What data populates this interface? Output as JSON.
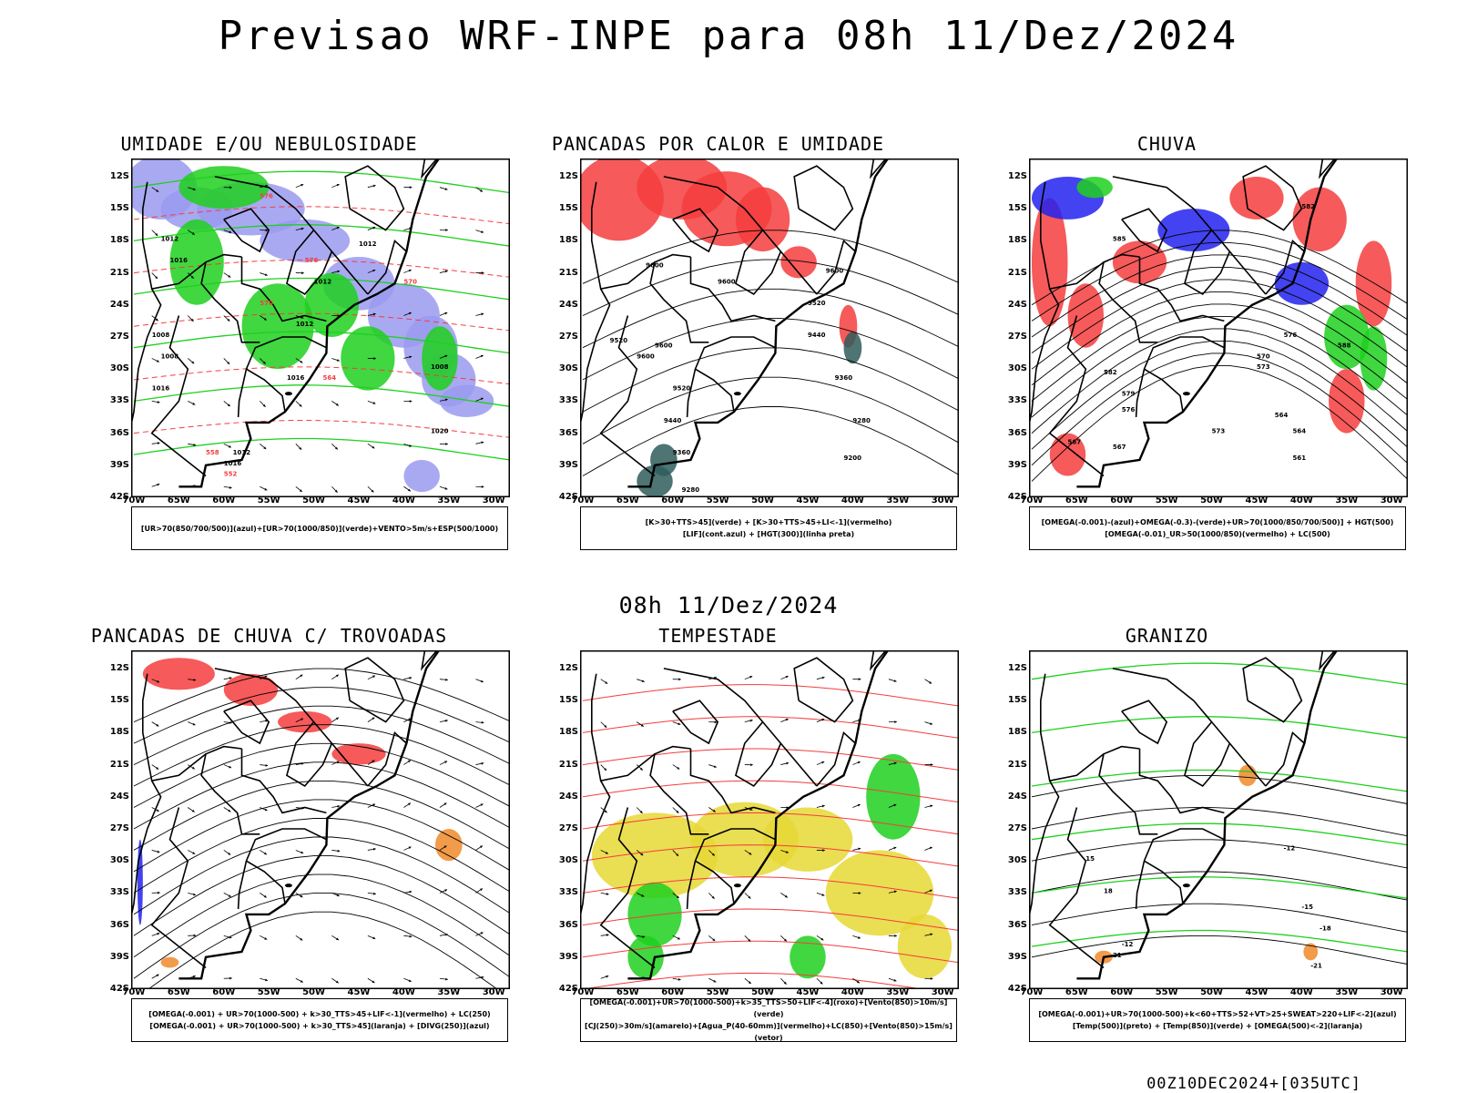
{
  "title": "Previsao WRF-INPE  para 08h 11/Dez/2024",
  "mid_time": "08h 11/Dez/2024",
  "footer": "00Z10DEC2024+[035UTC]",
  "axes": {
    "lat_labels": [
      "12S",
      "15S",
      "18S",
      "21S",
      "24S",
      "27S",
      "30S",
      "33S",
      "36S",
      "39S",
      "42S"
    ],
    "lon_labels": [
      "70W",
      "65W",
      "60W",
      "55W",
      "50W",
      "45W",
      "40W",
      "35W",
      "30W"
    ]
  },
  "colors": {
    "ur_850_700_500": "#9a9af0",
    "green": "#1ed01e",
    "red": "#f53d3d",
    "dark_teal": "#2f5c5c",
    "blue": "#2222ee",
    "yellow": "#e6d835",
    "orange": "#f08a2a",
    "contour": "#000000"
  },
  "panels": [
    {
      "title": "UMIDADE E/OU NEBULOSIDADE",
      "legend": [
        "[UR>70(850/700/500)](azul)+[UR>70(1000/850)](verde)+VENTO>5m/s+ESP(500/1000)"
      ],
      "contour_labels": [
        "1012",
        "1012",
        "1012",
        "1016",
        "1008",
        "1008",
        "1016",
        "1012",
        "1020",
        "1016",
        "1012",
        "1008",
        "1016",
        "576",
        "576",
        "570",
        "564",
        "558",
        "552",
        "570"
      ]
    },
    {
      "title": "PANCADAS POR CALOR E UMIDADE",
      "legend": [
        "[K>30+TTS>45](verde) + [K>30+TTS>45+LI<-1](vermelho)",
        "[LIF](cont.azul) + [HGT(300)](linha preta)"
      ],
      "contour_labels": [
        "9600",
        "9600",
        "9600",
        "9600",
        "9520",
        "9440",
        "9360",
        "9280",
        "9200",
        "9280",
        "9360",
        "9440",
        "9520",
        "9600",
        "9520"
      ]
    },
    {
      "title": "CHUVA",
      "legend": [
        "[OMEGA(-0.001)-(azul)+OMEGA(-0.3)-(verde)+UR>70(1000/850/700/500)] + HGT(500)",
        "[OMEGA(-0.01)_UR>50(1000/850)(vermelho) + LC(500)"
      ],
      "contour_labels": [
        "582",
        "585",
        "582",
        "579",
        "576",
        "573",
        "570",
        "567",
        "564",
        "561",
        "588",
        "576",
        "573",
        "567",
        "564"
      ]
    },
    {
      "title": "PANCADAS DE CHUVA C/ TROVOADAS",
      "legend": [
        "[OMEGA(-0.001) + UR>70(1000-500) + k>30_TTS>45+LIF<-1](vermelho) + LC(250)",
        "[OMEGA(-0.001) + UR>70(1000-500) + k>30_TTS>45](laranja) + [DIVG(250)](azul)"
      ],
      "contour_labels": []
    },
    {
      "title": "TEMPESTADE",
      "legend": [
        "[OMEGA(-0.001)+UR>70(1000-500)+k>35_TTS>50+LIF<-4](roxo)+[Vento(850)>10m/s](verde)",
        "[CJ(250)>30m/s](amarelo)+[Agua_P(40-60mm)](vermelho)+LC(850)+[Vento(850)>15m/s](vetor)"
      ],
      "contour_labels": []
    },
    {
      "title": "GRANIZO",
      "legend": [
        "[OMEGA(-0.001)+UR>70(1000-500)+k<60+TTS>52+VT>25+SWEAT>220+LIF<-2](azul)",
        "[Temp(500)](preto) + [Temp(850)](verde) + [OMEGA(500)<-2](laranja)"
      ],
      "contour_labels": [
        "-12",
        "-12",
        "-15",
        "-18",
        "-21",
        "15",
        "18",
        "21"
      ]
    }
  ]
}
